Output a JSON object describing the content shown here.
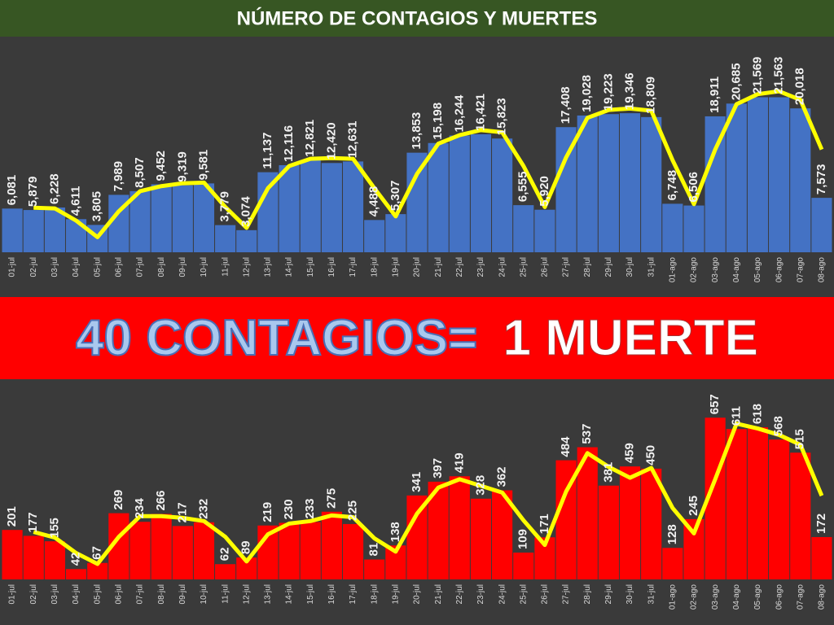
{
  "title": "NÚMERO DE CONTAGIOS Y MUERTES",
  "banner": {
    "part1": "40 CONTAGIOS=",
    "part2": "1 MUERTE"
  },
  "chart_data": [
    {
      "type": "bar",
      "categories": [
        "01-jul",
        "02-jul",
        "03-jul",
        "04-jul",
        "05-jul",
        "06-jul",
        "07-jul",
        "08-jul",
        "09-jul",
        "10-jul",
        "11-jul",
        "12-jul",
        "13-jul",
        "14-jul",
        "15-jul",
        "16-jul",
        "17-jul",
        "18-jul",
        "19-jul",
        "20-jul",
        "21-jul",
        "22-jul",
        "23-jul",
        "24-jul",
        "25-jul",
        "26-jul",
        "27-jul",
        "28-jul",
        "29-jul",
        "30-jul",
        "31-jul",
        "01-ago",
        "02-ago",
        "03-ago",
        "04-ago",
        "05-ago",
        "06-ago",
        "07-ago",
        "08-ago"
      ],
      "ylim": [
        0,
        30000
      ],
      "series": [
        {
          "type": "bar",
          "color": "#4472c4",
          "values": [
            6081,
            5879,
            6228,
            4611,
            3805,
            7989,
            8507,
            9452,
            9319,
            9581,
            3779,
            3074,
            11137,
            12116,
            12821,
            12420,
            12631,
            4488,
            5307,
            13853,
            15198,
            16244,
            16421,
            15823,
            6555,
            5920,
            17408,
            19028,
            19223,
            19346,
            18809,
            6748,
            6506,
            18911,
            20685,
            21569,
            21563,
            20018,
            7573
          ],
          "value_labels": [
            "6,081",
            "5,879",
            "6,228",
            "4,611",
            "3,805",
            "7,989",
            "8,507",
            "9,452",
            "9,319",
            "9,581",
            "3,779",
            "3,074",
            "11,137",
            "12,116",
            "12,821",
            "12,420",
            "12,631",
            "4,488",
            "5,307",
            "13,853",
            "15,198",
            "16,244",
            "16,421",
            "15,823",
            "6,555",
            "5,920",
            "17,408",
            "19,028",
            "19,223",
            "19,346",
            "18,809",
            "6,748",
            "6,506",
            "18,911",
            "20,685",
            "21,569",
            "21,563",
            "20,018",
            "7,573"
          ]
        },
        {
          "type": "line",
          "color": "#ffff00",
          "values": [
            null,
            6200,
            6100,
            4400,
            2100,
            5700,
            8500,
            9200,
            9600,
            9700,
            6300,
            3400,
            8900,
            12000,
            13000,
            13100,
            13000,
            8900,
            5000,
            10900,
            15100,
            16300,
            17000,
            16700,
            12000,
            6300,
            13200,
            18700,
            19800,
            20000,
            19700,
            12800,
            6700,
            14300,
            20600,
            22000,
            22400,
            21200,
            14300
          ]
        }
      ]
    },
    {
      "type": "bar",
      "categories": [
        "01-jul",
        "02-jul",
        "03-jul",
        "04-jul",
        "05-jul",
        "06-jul",
        "07-jul",
        "08-jul",
        "09-jul",
        "10-jul",
        "11-jul",
        "12-jul",
        "13-jul",
        "14-jul",
        "15-jul",
        "16-jul",
        "17-jul",
        "18-jul",
        "19-jul",
        "20-jul",
        "21-jul",
        "22-jul",
        "23-jul",
        "24-jul",
        "25-jul",
        "26-jul",
        "27-jul",
        "28-jul",
        "29-jul",
        "30-jul",
        "31-jul",
        "01-ago",
        "02-ago",
        "03-ago",
        "04-ago",
        "05-ago",
        "06-ago",
        "07-ago",
        "08-ago"
      ],
      "ylim": [
        0,
        800
      ],
      "series": [
        {
          "type": "bar",
          "color": "#ff0000",
          "values": [
            201,
            177,
            155,
            42,
            67,
            269,
            234,
            266,
            217,
            232,
            62,
            89,
            219,
            230,
            233,
            275,
            225,
            81,
            138,
            341,
            397,
            419,
            328,
            362,
            109,
            171,
            484,
            537,
            381,
            459,
            450,
            128,
            245,
            657,
            611,
            618,
            568,
            515,
            172
          ]
        },
        {
          "type": "line",
          "color": "#ffff00",
          "values": [
            null,
            193,
            170,
            107,
            63,
            173,
            257,
            257,
            250,
            237,
            173,
            73,
            183,
            227,
            237,
            260,
            253,
            167,
            113,
            267,
            373,
            407,
            380,
            353,
            240,
            140,
            357,
            513,
            457,
            413,
            453,
            290,
            187,
            407,
            633,
            613,
            587,
            547,
            340
          ]
        }
      ]
    }
  ]
}
